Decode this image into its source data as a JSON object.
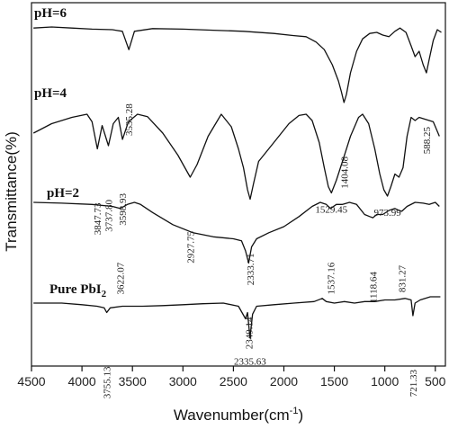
{
  "chart_data": {
    "type": "line",
    "xlabel": "Wavenumber(cm",
    "xlabel_superscript": "-1",
    "xlabel_close": ")",
    "ylabel": "Transmittance(%)",
    "xlim": [
      4500,
      400
    ],
    "x_reversed": true,
    "x_ticks": [
      4500,
      4000,
      3500,
      3000,
      2500,
      2000,
      1500,
      1000,
      500
    ],
    "y_ticks": false,
    "grid": false,
    "color": "#111111",
    "series": [
      {
        "name": "pH=6",
        "points": [
          [
            4480,
            0.02
          ],
          [
            4300,
            0.0
          ],
          [
            4100,
            0.02
          ],
          [
            3900,
            0.04
          ],
          [
            3700,
            0.05
          ],
          [
            3600,
            0.08
          ],
          [
            3535.28,
            0.42
          ],
          [
            3480,
            0.08
          ],
          [
            3300,
            0.03
          ],
          [
            3000,
            0.04
          ],
          [
            2700,
            0.06
          ],
          [
            2400,
            0.08
          ],
          [
            2100,
            0.12
          ],
          [
            1900,
            0.16
          ],
          [
            1780,
            0.18
          ],
          [
            1680,
            0.28
          ],
          [
            1600,
            0.42
          ],
          [
            1520,
            0.7
          ],
          [
            1460,
            1.0
          ],
          [
            1430,
            1.2
          ],
          [
            1404.08,
            1.4
          ],
          [
            1380,
            1.25
          ],
          [
            1340,
            0.85
          ],
          [
            1280,
            0.45
          ],
          [
            1220,
            0.22
          ],
          [
            1150,
            0.12
          ],
          [
            1080,
            0.1
          ],
          [
            1020,
            0.15
          ],
          [
            960,
            0.18
          ],
          [
            900,
            0.08
          ],
          [
            850,
            0.02
          ],
          [
            790,
            0.1
          ],
          [
            740,
            0.35
          ],
          [
            700,
            0.55
          ],
          [
            660,
            0.45
          ],
          [
            620,
            0.7
          ],
          [
            588.25,
            0.85
          ],
          [
            560,
            0.6
          ],
          [
            520,
            0.25
          ],
          [
            480,
            0.05
          ],
          [
            440,
            0.1
          ]
        ],
        "peaks": [
          {
            "x": 3535.28,
            "label": "3535.28"
          },
          {
            "x": 1404.08,
            "label": "1404.08"
          },
          {
            "x": 588.25,
            "label": "588.25"
          }
        ]
      },
      {
        "name": "pH=4",
        "points": [
          [
            4480,
            0.3
          ],
          [
            4300,
            0.15
          ],
          [
            4100,
            0.05
          ],
          [
            3950,
            0.0
          ],
          [
            3900,
            0.12
          ],
          [
            3847.73,
            0.55
          ],
          [
            3800,
            0.18
          ],
          [
            3737.8,
            0.5
          ],
          [
            3690,
            0.15
          ],
          [
            3640,
            0.05
          ],
          [
            3598.93,
            0.4
          ],
          [
            3540,
            0.12
          ],
          [
            3450,
            0.0
          ],
          [
            3350,
            0.04
          ],
          [
            3200,
            0.3
          ],
          [
            3050,
            0.65
          ],
          [
            2980,
            0.85
          ],
          [
            2927.75,
            1.0
          ],
          [
            2860,
            0.8
          ],
          [
            2750,
            0.35
          ],
          [
            2620,
            0.0
          ],
          [
            2520,
            0.2
          ],
          [
            2450,
            0.55
          ],
          [
            2400,
            0.85
          ],
          [
            2360,
            1.2
          ],
          [
            2333.71,
            1.35
          ],
          [
            2300,
            1.1
          ],
          [
            2250,
            0.75
          ],
          [
            2100,
            0.45
          ],
          [
            1950,
            0.15
          ],
          [
            1850,
            0.02
          ],
          [
            1780,
            0.0
          ],
          [
            1720,
            0.1
          ],
          [
            1650,
            0.45
          ],
          [
            1600,
            0.85
          ],
          [
            1560,
            1.15
          ],
          [
            1529.45,
            1.25
          ],
          [
            1480,
            1.05
          ],
          [
            1420,
            0.75
          ],
          [
            1340,
            0.35
          ],
          [
            1260,
            0.05
          ],
          [
            1220,
            0.0
          ],
          [
            1160,
            0.15
          ],
          [
            1100,
            0.55
          ],
          [
            1050,
            0.95
          ],
          [
            1010,
            1.2
          ],
          [
            973.99,
            1.3
          ],
          [
            940,
            1.15
          ],
          [
            900,
            0.95
          ],
          [
            860,
            1.0
          ],
          [
            820,
            0.85
          ],
          [
            780,
            0.35
          ],
          [
            740,
            0.05
          ],
          [
            700,
            0.1
          ],
          [
            660,
            0.05
          ],
          [
            600,
            0.08
          ],
          [
            520,
            0.12
          ],
          [
            460,
            0.35
          ]
        ],
        "peaks": [
          {
            "x": 3847.73,
            "label": "3847.73"
          },
          {
            "x": 3737.8,
            "label": "3737.80"
          },
          {
            "x": 3598.93,
            "label": "3598.93"
          },
          {
            "x": 2927.75,
            "label": "2927.75"
          },
          {
            "x": 2333.71,
            "label": "2333.71"
          },
          {
            "x": 1529.45,
            "label": "1529.45"
          },
          {
            "x": 973.99,
            "label": "973.99"
          }
        ]
      },
      {
        "name": "pH=2",
        "points": [
          [
            4480,
            0.0
          ],
          [
            4200,
            0.02
          ],
          [
            3900,
            0.05
          ],
          [
            3700,
            0.1
          ],
          [
            3622.07,
            0.15
          ],
          [
            3550,
            0.05
          ],
          [
            3480,
            0.0
          ],
          [
            3420,
            0.05
          ],
          [
            3300,
            0.25
          ],
          [
            3100,
            0.55
          ],
          [
            2900,
            0.75
          ],
          [
            2700,
            0.85
          ],
          [
            2500,
            0.9
          ],
          [
            2420,
            0.95
          ],
          [
            2380,
            1.2
          ],
          [
            2349.14,
            1.5
          ],
          [
            2320,
            1.1
          ],
          [
            2270,
            0.9
          ],
          [
            2150,
            0.75
          ],
          [
            2000,
            0.6
          ],
          [
            1850,
            0.35
          ],
          [
            1720,
            0.1
          ],
          [
            1640,
            0.0
          ],
          [
            1580,
            0.05
          ],
          [
            1537.16,
            0.15
          ],
          [
            1480,
            0.05
          ],
          [
            1420,
            0.05
          ],
          [
            1350,
            0.0
          ],
          [
            1280,
            0.05
          ],
          [
            1200,
            0.3
          ],
          [
            1150,
            0.35
          ],
          [
            1118.64,
            0.38
          ],
          [
            1080,
            0.3
          ],
          [
            1020,
            0.3
          ],
          [
            960,
            0.2
          ],
          [
            900,
            0.15
          ],
          [
            860,
            0.2
          ],
          [
            831.27,
            0.22
          ],
          [
            780,
            0.1
          ],
          [
            700,
            0.0
          ],
          [
            620,
            0.02
          ],
          [
            560,
            0.05
          ],
          [
            500,
            0.0
          ],
          [
            460,
            0.1
          ]
        ],
        "peaks": [
          {
            "x": 3622.07,
            "label": "3622.07"
          },
          {
            "x": 2349.14,
            "label": "2349.14"
          },
          {
            "x": 1537.16,
            "label": "1537.16"
          },
          {
            "x": 1118.64,
            "label": "1118.64"
          },
          {
            "x": 831.27,
            "label": "831.27"
          }
        ]
      },
      {
        "name": "Pure PbI",
        "name_subscript": "2",
        "points": [
          [
            4480,
            0.2
          ],
          [
            4200,
            0.2
          ],
          [
            4000,
            0.25
          ],
          [
            3850,
            0.3
          ],
          [
            3780,
            0.35
          ],
          [
            3755.13,
            0.5
          ],
          [
            3720,
            0.35
          ],
          [
            3600,
            0.3
          ],
          [
            3400,
            0.3
          ],
          [
            3200,
            0.28
          ],
          [
            3000,
            0.25
          ],
          [
            2800,
            0.22
          ],
          [
            2600,
            0.2
          ],
          [
            2450,
            0.3
          ],
          [
            2380,
            0.7
          ],
          [
            2360,
            0.5
          ],
          [
            2335.63,
            1.3
          ],
          [
            2310,
            0.55
          ],
          [
            2270,
            0.3
          ],
          [
            2100,
            0.25
          ],
          [
            1900,
            0.2
          ],
          [
            1700,
            0.15
          ],
          [
            1620,
            0.05
          ],
          [
            1580,
            0.15
          ],
          [
            1500,
            0.2
          ],
          [
            1400,
            0.15
          ],
          [
            1300,
            0.2
          ],
          [
            1200,
            0.15
          ],
          [
            1100,
            0.15
          ],
          [
            1000,
            0.1
          ],
          [
            900,
            0.1
          ],
          [
            800,
            0.05
          ],
          [
            740,
            0.1
          ],
          [
            721.33,
            0.6
          ],
          [
            700,
            0.2
          ],
          [
            650,
            0.1
          ],
          [
            550,
            0.0
          ],
          [
            450,
            0.0
          ]
        ],
        "peaks": [
          {
            "x": 3755.13,
            "label": "3755.13"
          },
          {
            "x": 2335.63,
            "label": "2335.63"
          },
          {
            "x": 721.33,
            "label": "721.33"
          }
        ]
      }
    ]
  }
}
